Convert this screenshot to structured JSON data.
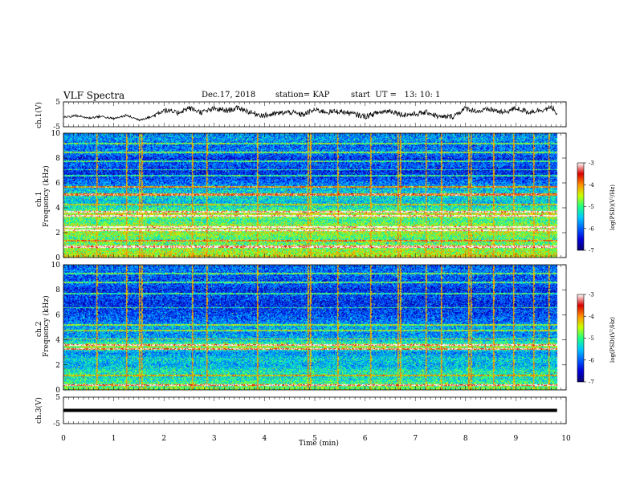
{
  "header": {
    "title": "VLF Spectra",
    "date": "Dec.17, 2018",
    "station": "station= KAP",
    "start": "start  UT =   13: 10: 1"
  },
  "colors": {
    "colormap": [
      "#08006e",
      "#0000d8",
      "#0060ff",
      "#00c8ff",
      "#20ff80",
      "#c8ff00",
      "#ff9000",
      "#d80000",
      "#ffffff"
    ],
    "line": "#000000"
  },
  "chart_data": [
    {
      "type": "line",
      "ylabel": "ch.1(V)",
      "ylim": [
        -5,
        5
      ],
      "yticks": [
        "5",
        "-5"
      ],
      "x": [
        0,
        0.25,
        0.5,
        0.75,
        1.0,
        1.25,
        1.5,
        1.75,
        2.0,
        2.25,
        2.5,
        2.75,
        3.0,
        3.25,
        3.5,
        3.75,
        4.0,
        4.25,
        4.5,
        4.75,
        5.0,
        5.25,
        5.5,
        5.75,
        6.0,
        6.25,
        6.5,
        6.75,
        7.0,
        7.25,
        7.5,
        7.75,
        8.0,
        8.25,
        8.5,
        8.75,
        9.0,
        9.25,
        9.5,
        9.75,
        9.82
      ],
      "values": [
        -1.2,
        -0.5,
        -1.5,
        -0.8,
        -1.8,
        -0.4,
        -2.2,
        -1.0,
        1.8,
        0.5,
        2.5,
        0.8,
        2.2,
        1.5,
        2.6,
        0.5,
        -0.5,
        0.3,
        0.9,
        -0.2,
        1.8,
        0.9,
        1.2,
        0.2,
        -0.9,
        0.6,
        1.5,
        -0.2,
        0.1,
        0.8,
        -1.2,
        -0.8,
        2.4,
        1.2,
        2.0,
        0.6,
        2.5,
        0.9,
        1.8,
        2.6,
        -0.5
      ],
      "noise": 0.9
    },
    {
      "type": "heatmap",
      "ylabel": "ch.1",
      "ylabel2": "Frequency (kHz)",
      "ylim": [
        0,
        10
      ],
      "yticks": [
        "0",
        "2",
        "4",
        "6",
        "8",
        "10"
      ],
      "colorbar": {
        "label": "log(PSD)(V²/Hz)",
        "ticks": [
          "-3",
          "-4",
          "-5",
          "-6",
          "-7"
        ],
        "range": [
          -7,
          -3
        ]
      },
      "base_profile_khz": [
        0,
        0.5,
        1,
        1.5,
        2,
        2.5,
        3,
        3.5,
        4,
        4.5,
        5,
        5.5,
        6,
        6.5,
        7,
        7.5,
        8,
        8.5,
        9,
        9.5,
        10
      ],
      "base_profile_log": [
        -4.3,
        -4.6,
        -4.8,
        -5.0,
        -4.6,
        -4.5,
        -5.1,
        -4.4,
        -5.2,
        -5.5,
        -5.3,
        -5.5,
        -5.9,
        -6.2,
        -6.3,
        -6.0,
        -6.3,
        -5.8,
        -6.0,
        -5.7,
        -5.8
      ],
      "strong_lines_khz": [
        0.9,
        2.2,
        2.5,
        3.4,
        3.7,
        5.1,
        5.7
      ],
      "medium_lines_khz": [
        1.4,
        4.3,
        6.6,
        7.1,
        7.8,
        8.5,
        9.2
      ],
      "sferic_times_min": [
        0.65,
        1.25,
        1.5,
        1.55,
        2.55,
        2.85,
        3.85,
        4.85,
        4.9,
        5.45,
        6.1,
        6.65,
        6.7,
        7.2,
        7.5,
        8.05,
        8.1,
        8.55,
        8.95,
        9.35,
        9.65
      ]
    },
    {
      "type": "heatmap",
      "ylabel": "ch.2",
      "ylabel2": "Frequency (kHz)",
      "ylim": [
        0,
        10
      ],
      "yticks": [
        "0",
        "2",
        "4",
        "6",
        "8",
        "10"
      ],
      "colorbar": {
        "label": "log(PSD)(V²/Hz)",
        "ticks": [
          "-3",
          "-4",
          "-5",
          "-6",
          "-7"
        ],
        "range": [
          -7,
          -3
        ]
      },
      "base_profile_khz": [
        0,
        0.5,
        1,
        1.5,
        2,
        2.5,
        3,
        3.5,
        4,
        4.5,
        5,
        5.5,
        6,
        6.5,
        7,
        7.5,
        8,
        8.5,
        9,
        9.5,
        10
      ],
      "base_profile_log": [
        -4.7,
        -5.0,
        -5.3,
        -5.2,
        -5.6,
        -5.4,
        -5.8,
        -4.6,
        -5.5,
        -5.8,
        -5.6,
        -5.9,
        -6.1,
        -6.2,
        -6.3,
        -6.1,
        -6.3,
        -6.0,
        -6.1,
        -5.9,
        -6.0
      ],
      "strong_lines_khz": [
        0.4,
        3.3,
        3.6
      ],
      "medium_lines_khz": [
        1.2,
        4.1,
        4.8,
        5.2,
        6.6,
        7.7,
        8.6,
        9.3
      ],
      "sferic_times_min": [
        0.65,
        1.25,
        1.5,
        1.55,
        2.55,
        2.85,
        3.85,
        4.85,
        4.9,
        5.45,
        6.1,
        6.65,
        6.7,
        7.2,
        7.5,
        8.05,
        8.1,
        8.55,
        8.95,
        9.35,
        9.65
      ]
    },
    {
      "type": "line",
      "ylabel": "ch.3(V)",
      "ylim": [
        -5,
        5
      ],
      "yticks": [
        "5",
        "-5"
      ],
      "x": [
        0,
        9.82
      ],
      "values": [
        0,
        0
      ],
      "thick": true
    }
  ],
  "x_axis": {
    "label": "Time  (min)",
    "range": [
      0,
      10
    ],
    "ticks": [
      "0",
      "1",
      "2",
      "3",
      "4",
      "5",
      "6",
      "7",
      "8",
      "9",
      "10"
    ]
  }
}
